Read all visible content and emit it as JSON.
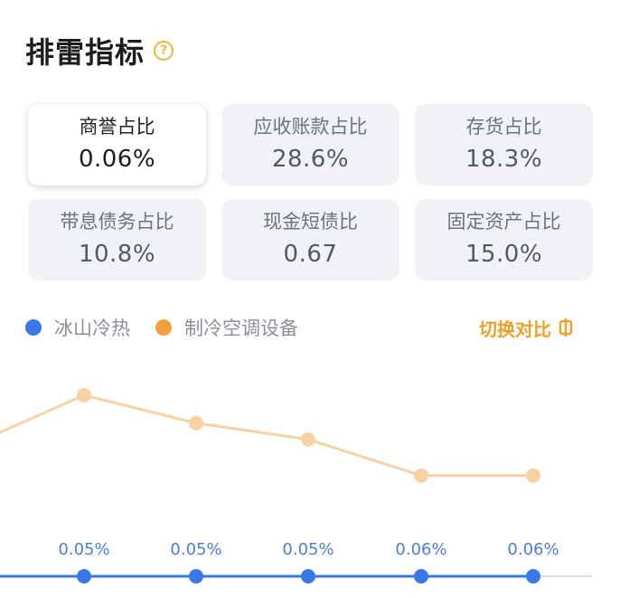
{
  "header": {
    "title": "排雷指标",
    "help_icon": "question-circle-icon"
  },
  "metrics": [
    {
      "label": "商誉占比",
      "value": "0.06%",
      "active": true
    },
    {
      "label": "应收账款占比",
      "value": "28.6%",
      "active": false
    },
    {
      "label": "存货占比",
      "value": "18.3%",
      "active": false
    },
    {
      "label": "带息债务占比",
      "value": "10.8%",
      "active": false
    },
    {
      "label": "现金短债比",
      "value": "0.67",
      "active": false
    },
    {
      "label": "固定资产占比",
      "value": "15.0%",
      "active": false
    }
  ],
  "legend": {
    "items": [
      {
        "name": "冰山冷热",
        "color": "#3b78e7"
      },
      {
        "name": "制冷空调设备",
        "color": "#f5a03c"
      }
    ],
    "switch_label": "切换对比",
    "switch_icon": "compare-toggle-icon"
  },
  "colors": {
    "accent": "#f0a02a",
    "series_blue": "#3b78e7",
    "series_orange_line": "#f8d2a4"
  },
  "chart_data": {
    "type": "line",
    "series": [
      {
        "name": "冰山冷热",
        "values": [
          0.05,
          0.05,
          0.05,
          0.05,
          0.06,
          0.06
        ],
        "labels": [
          "",
          "0.05%",
          "0.05%",
          "0.05%",
          "0.06%",
          "0.06%"
        ],
        "color": "#3b78e7"
      },
      {
        "name": "制冷空调设备",
        "values": [
          null,
          3.95,
          3.1,
          2.6,
          1.5,
          1.5
        ],
        "color": "#f8d2a4"
      }
    ],
    "x_count": 6,
    "grid": false
  }
}
